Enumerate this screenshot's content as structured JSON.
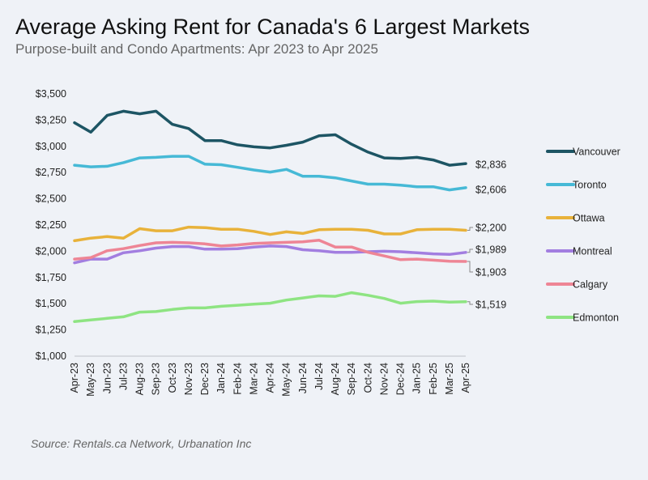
{
  "title": "Average Asking Rent for Canada's 6 Largest Markets",
  "subtitle": "Purpose-built and Condo Apartments: Apr 2023 to Apr 2025",
  "source": "Source: Rentals.ca Network, Urbanation Inc",
  "chart_data": {
    "type": "line",
    "title": "Average Asking Rent for Canada's 6 Largest Markets",
    "ylim": [
      1000,
      3500
    ],
    "yticks": [
      1000,
      1250,
      1500,
      1750,
      2000,
      2250,
      2500,
      2750,
      3000,
      3250,
      3500
    ],
    "ytick_labels": [
      "$1,000",
      "$1,250",
      "$1,500",
      "$1,750",
      "$2,000",
      "$2,250",
      "$2,500",
      "$2,750",
      "$3,000",
      "$3,250",
      "$3,500"
    ],
    "categories": [
      "Apr-23",
      "May-23",
      "Jun-23",
      "Jul-23",
      "Aug-23",
      "Sep-23",
      "Oct-23",
      "Nov-23",
      "Dec-23",
      "Jan-24",
      "Feb-24",
      "Mar-24",
      "Apr-24",
      "May-24",
      "Jun-24",
      "Jul-24",
      "Aug-24",
      "Sep-24",
      "Oct-24",
      "Nov-24",
      "Dec-24",
      "Jan-25",
      "Feb-25",
      "Mar-25",
      "Apr-25"
    ],
    "series": [
      {
        "name": "Vancouver",
        "color": "#1d5564",
        "end_label": "$2,836",
        "values": [
          3225,
          3135,
          3295,
          3335,
          3310,
          3335,
          3210,
          3170,
          3055,
          3055,
          3015,
          2995,
          2985,
          3010,
          3040,
          3100,
          3110,
          3020,
          2945,
          2890,
          2885,
          2895,
          2870,
          2820,
          2836
        ]
      },
      {
        "name": "Toronto",
        "color": "#46b9d6",
        "end_label": "$2,606",
        "values": [
          2820,
          2805,
          2810,
          2845,
          2890,
          2895,
          2905,
          2905,
          2830,
          2825,
          2800,
          2775,
          2755,
          2780,
          2715,
          2715,
          2700,
          2670,
          2640,
          2640,
          2630,
          2615,
          2615,
          2585,
          2606
        ]
      },
      {
        "name": "Ottawa",
        "color": "#e8b23a",
        "end_label": "$2,200",
        "values": [
          2100,
          2125,
          2140,
          2125,
          2215,
          2195,
          2195,
          2230,
          2225,
          2210,
          2210,
          2190,
          2160,
          2185,
          2170,
          2205,
          2210,
          2210,
          2200,
          2165,
          2165,
          2205,
          2210,
          2210,
          2200
        ]
      },
      {
        "name": "Montreal",
        "color": "#a27ee0",
        "end_label": "$1,989",
        "values": [
          1890,
          1925,
          1925,
          1985,
          2005,
          2030,
          2045,
          2045,
          2020,
          2020,
          2025,
          2040,
          2050,
          2045,
          2015,
          2005,
          1990,
          1990,
          1995,
          2000,
          1995,
          1985,
          1975,
          1970,
          1989
        ]
      },
      {
        "name": "Calgary",
        "color": "#ee8595",
        "end_label": "$1,903",
        "values": [
          1925,
          1940,
          2005,
          2025,
          2055,
          2080,
          2085,
          2080,
          2070,
          2050,
          2060,
          2075,
          2080,
          2085,
          2090,
          2105,
          2040,
          2040,
          1990,
          1955,
          1920,
          1925,
          1915,
          1905,
          1903
        ]
      },
      {
        "name": "Edmonton",
        "color": "#8ee482",
        "end_label": "$1,519",
        "values": [
          1330,
          1345,
          1360,
          1375,
          1420,
          1425,
          1445,
          1460,
          1460,
          1475,
          1485,
          1495,
          1505,
          1535,
          1555,
          1575,
          1570,
          1605,
          1580,
          1550,
          1505,
          1520,
          1525,
          1515,
          1519
        ]
      }
    ]
  }
}
